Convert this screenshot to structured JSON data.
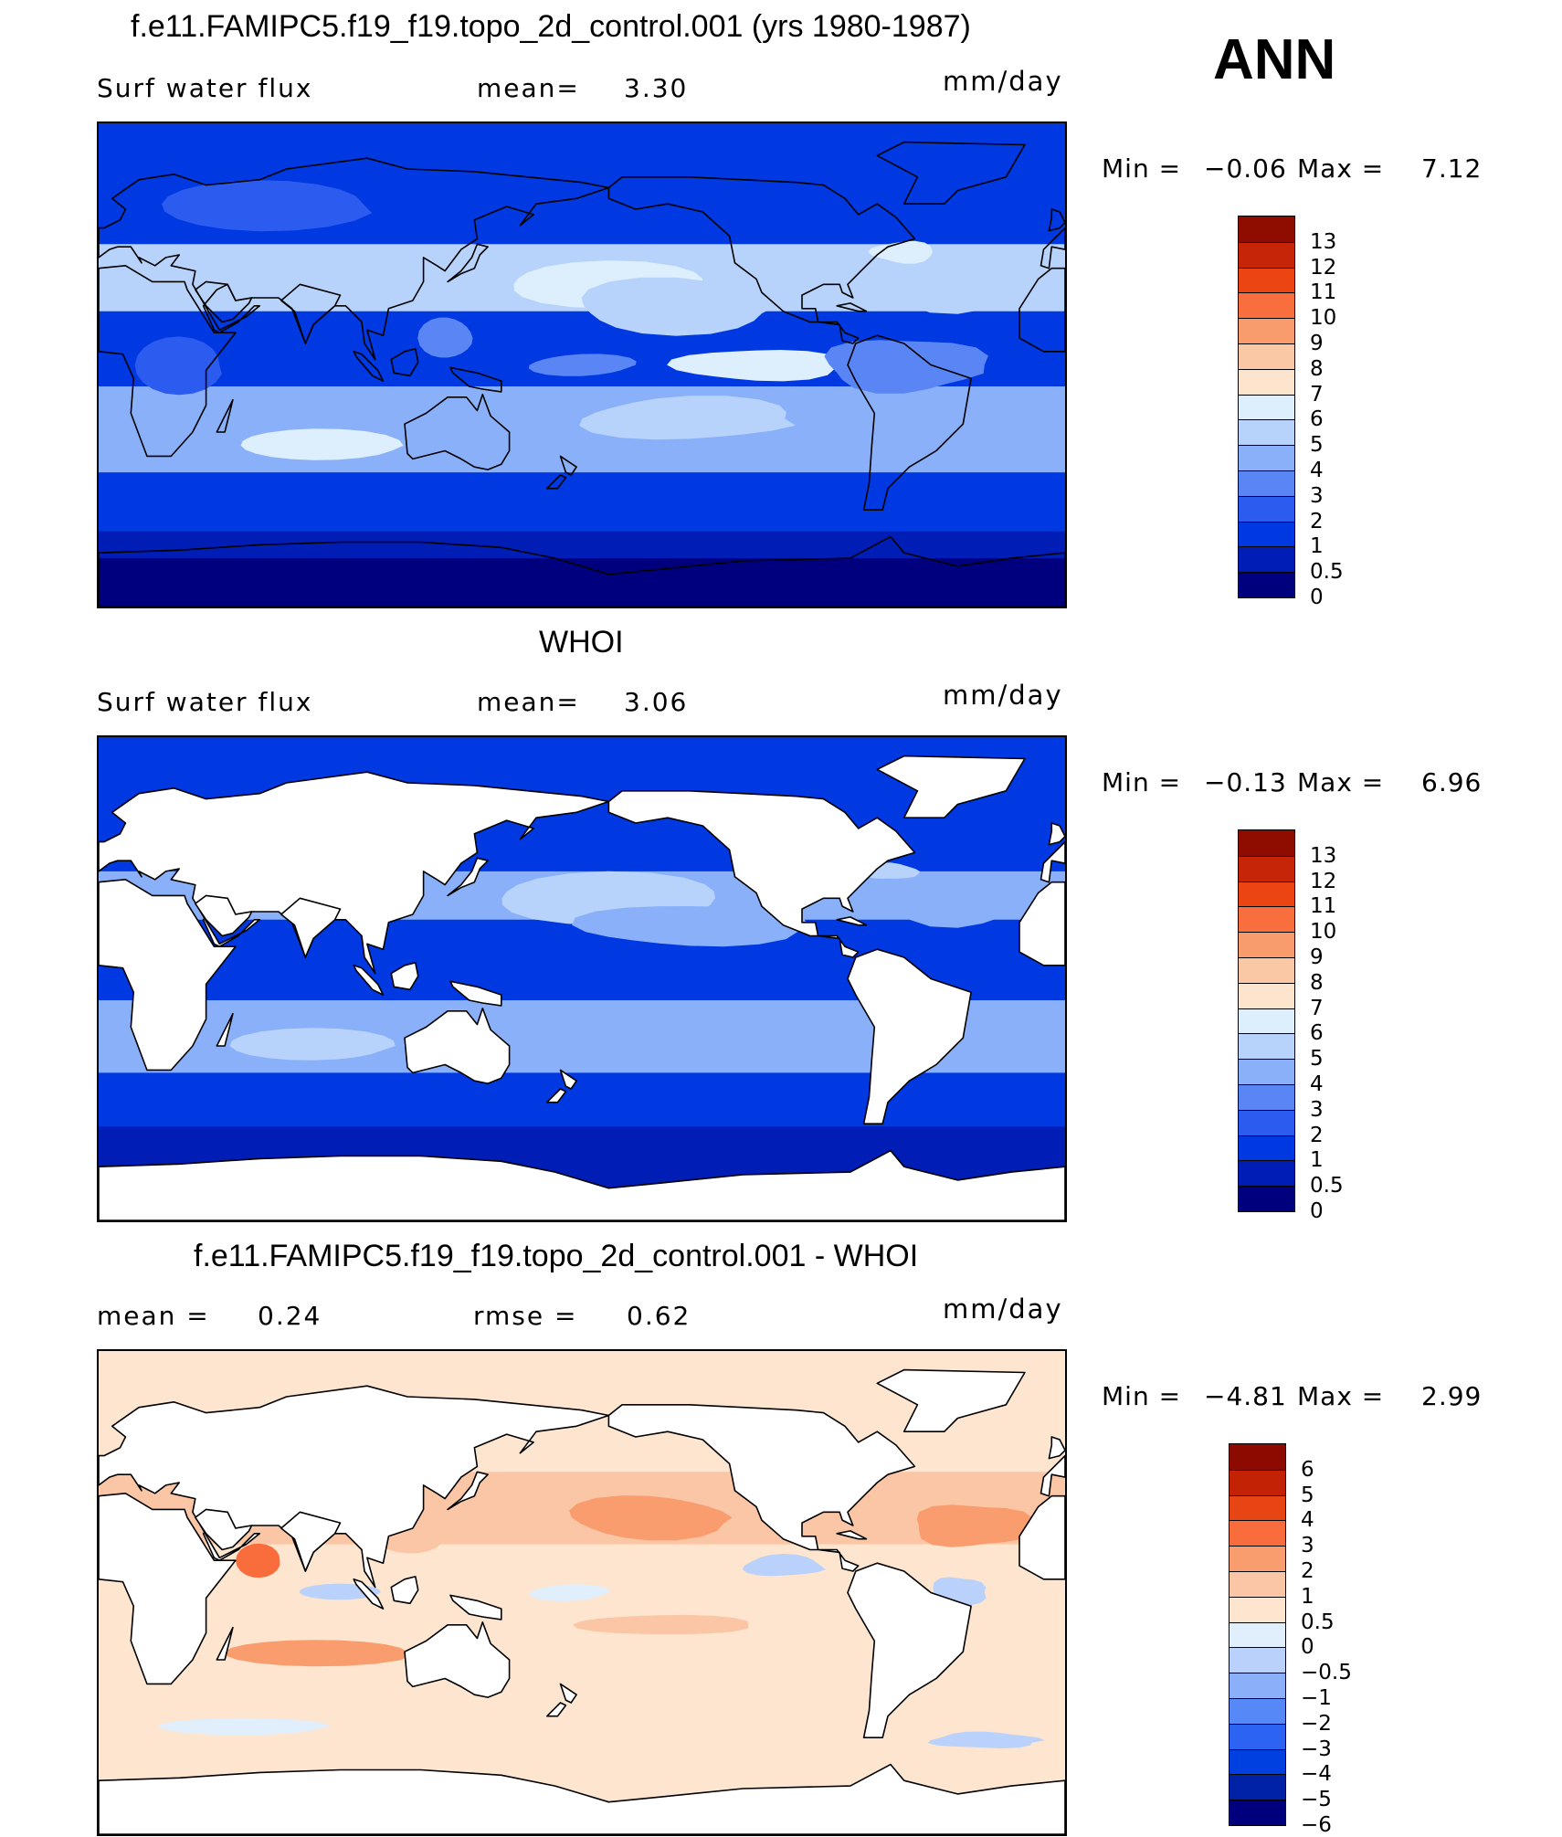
{
  "season": "ANN",
  "colors": {
    "abs_scale": [
      "#00007f",
      "#001db5",
      "#0038e1",
      "#2c5bef",
      "#5a86f5",
      "#8ab0f9",
      "#b7d3fb",
      "#ddeefc",
      "#fde4cc",
      "#fbc8a6",
      "#f89c6d",
      "#f86e3c",
      "#ea4513",
      "#c62508",
      "#8e0c00"
    ],
    "diff_scale": [
      "#00007f",
      "#0022a7",
      "#0040e0",
      "#2d63f2",
      "#5788f7",
      "#8caffa",
      "#bad2fb",
      "#e1eefc",
      "#fde5cf",
      "#fbc6a5",
      "#f99c6e",
      "#f96d3d",
      "#e84515",
      "#c32205",
      "#8c0a00"
    ],
    "land": "#ffffff",
    "coast": "#000000"
  },
  "panels": [
    {
      "id": "model",
      "title": "f.e11.FAMIPC5.f19_f19.topo_2d_control.001 (yrs 1980-1987)",
      "left_label": "Surf water flux",
      "mid_label": "mean=",
      "mid_value": "3.30",
      "units": "mm/day",
      "min_label": "Min =",
      "min_value": "−0.06",
      "max_label": "Max =",
      "max_value": "7.12",
      "colorbar_ticks": [
        "13",
        "12",
        "11",
        "10",
        "9",
        "8",
        "7",
        "6",
        "5",
        "4",
        "3",
        "2",
        "1",
        "0.5",
        "0"
      ]
    },
    {
      "id": "obs",
      "title": "WHOI",
      "left_label": "Surf water flux",
      "mid_label": "mean=",
      "mid_value": "3.06",
      "units": "mm/day",
      "min_label": "Min =",
      "min_value": "−0.13",
      "max_label": "Max =",
      "max_value": "6.96",
      "colorbar_ticks": [
        "13",
        "12",
        "11",
        "10",
        "9",
        "8",
        "7",
        "6",
        "5",
        "4",
        "3",
        "2",
        "1",
        "0.5",
        "0"
      ]
    },
    {
      "id": "diff",
      "title": "f.e11.FAMIPC5.f19_f19.topo_2d_control.001 - WHOI",
      "left_label": "mean =",
      "left_value": "0.24",
      "mid_label": "rmse =",
      "mid_value": "0.62",
      "units": "mm/day",
      "min_label": "Min =",
      "min_value": "−4.81",
      "max_label": "Max =",
      "max_value": "2.99",
      "colorbar_ticks": [
        "6",
        "5",
        "4",
        "3",
        "2",
        "1",
        "0.5",
        "0",
        "−0.5",
        "−1",
        "−2",
        "−3",
        "−4",
        "−5",
        "−6"
      ]
    }
  ],
  "chart_data": [
    {
      "type": "heatmap",
      "title": "f.e11.FAMIPC5.f19_f19.topo_2d_control.001 (yrs 1980-1987)",
      "variable": "Surf water flux",
      "units": "mm/day",
      "mean": 3.3,
      "min": -0.06,
      "max": 7.12,
      "contour_levels": [
        0,
        0.5,
        1,
        2,
        3,
        4,
        5,
        6,
        7,
        8,
        9,
        10,
        11,
        12,
        13
      ],
      "season": "ANN"
    },
    {
      "type": "heatmap",
      "title": "WHOI",
      "variable": "Surf water flux",
      "units": "mm/day",
      "mean": 3.06,
      "min": -0.13,
      "max": 6.96,
      "contour_levels": [
        0,
        0.5,
        1,
        2,
        3,
        4,
        5,
        6,
        7,
        8,
        9,
        10,
        11,
        12,
        13
      ],
      "season": "ANN"
    },
    {
      "type": "heatmap",
      "title": "f.e11.FAMIPC5.f19_f19.topo_2d_control.001 - WHOI",
      "units": "mm/day",
      "mean": 0.24,
      "rmse": 0.62,
      "min": -4.81,
      "max": 2.99,
      "contour_levels": [
        -6,
        -5,
        -4,
        -3,
        -2,
        -1,
        -0.5,
        0,
        0.5,
        1,
        2,
        3,
        4,
        5,
        6
      ],
      "season": "ANN"
    }
  ]
}
